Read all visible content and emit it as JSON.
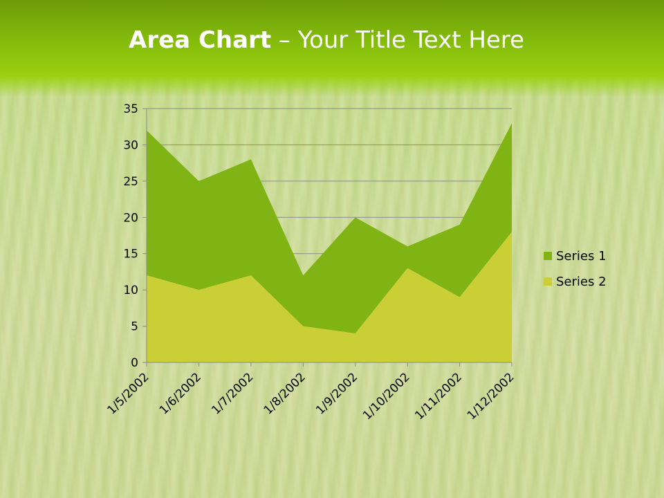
{
  "slide": {
    "title_bold": "Area Chart",
    "title_rest": " – Your Title Text Here"
  },
  "colors": {
    "series1": "#7fb414",
    "series2": "#c9cf34",
    "title_band": "#8cc40e"
  },
  "chart_data": {
    "type": "area",
    "stacked": true,
    "categories": [
      "1/5/2002",
      "1/6/2002",
      "1/7/2002",
      "1/8/2002",
      "1/9/2002",
      "1/10/2002",
      "1/11/2002",
      "1/12/2002"
    ],
    "series": [
      {
        "name": "Series 1",
        "values": [
          20,
          15,
          16,
          7,
          16,
          3,
          10,
          15
        ]
      },
      {
        "name": "Series 2",
        "values": [
          12,
          10,
          12,
          5,
          4,
          13,
          9,
          18
        ]
      }
    ],
    "ylim": [
      0,
      35
    ],
    "yticks": [
      0,
      5,
      10,
      15,
      20,
      25,
      30,
      35
    ],
    "grid": true,
    "legend_position": "right"
  }
}
